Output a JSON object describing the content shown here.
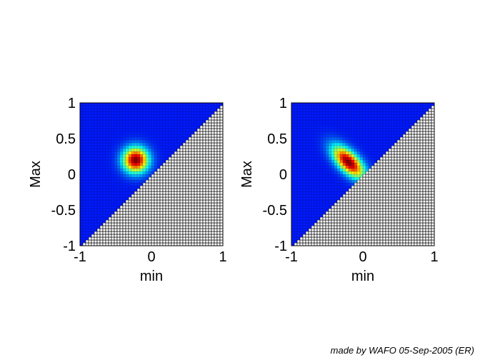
{
  "credit": "made by WAFO 05-Sep-2005 (ER)",
  "chart_data": [
    {
      "type": "heatmap",
      "title": "",
      "xlabel": "min",
      "ylabel": "Max",
      "xlim": [
        -1,
        1
      ],
      "ylim": [
        -1,
        1
      ],
      "xticks": [
        "-1",
        "0",
        "1"
      ],
      "yticks": [
        "1",
        "0.5",
        "0",
        "-0.5",
        "-1"
      ],
      "grid_cells": 50,
      "masked_region": "min > Max (drawn as white grid)",
      "colormap": "jet",
      "peak": {
        "min": -0.22,
        "Max": 0.2
      },
      "shape": "circular",
      "spread": 0.12
    },
    {
      "type": "heatmap",
      "title": "",
      "xlabel": "min",
      "ylabel": "Max",
      "xlim": [
        -1,
        1
      ],
      "ylim": [
        -1,
        1
      ],
      "xticks": [
        "-1",
        "0",
        "1"
      ],
      "yticks": [
        "1",
        "0.5",
        "0",
        "-0.5",
        "-1"
      ],
      "grid_cells": 50,
      "masked_region": "min > Max (drawn as white grid)",
      "colormap": "jet",
      "peak": {
        "min": -0.2,
        "Max": 0.17
      },
      "shape": "elongated along min = -Max direction",
      "spread": 0.12
    }
  ]
}
